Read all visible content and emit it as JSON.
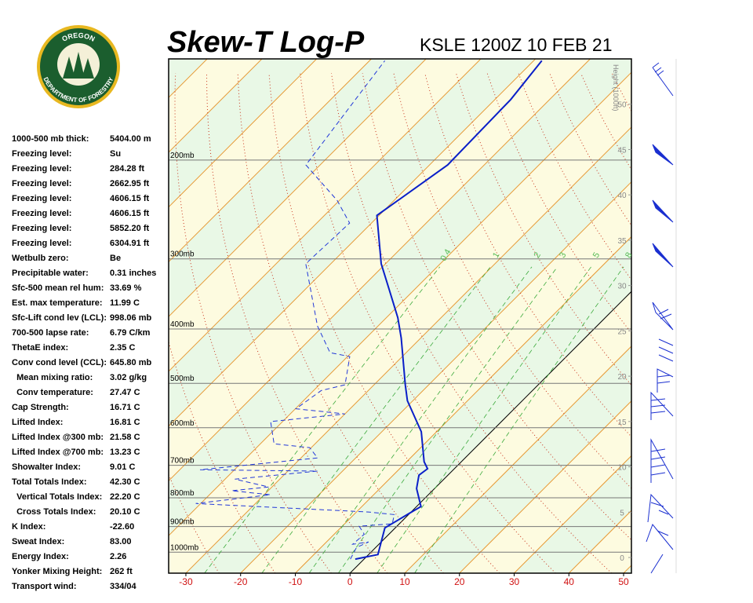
{
  "logo": {
    "top": "OREGON",
    "bottom": "DEPARTMENT OF FORESTRY"
  },
  "title": "Skew-T Log-P",
  "station": "KSLE 1200Z 10 FEB 21",
  "stats": [
    {
      "label": "1000-500 mb thick:",
      "value": "5404.00 m"
    },
    {
      "label": "Freezing level:",
      "value": "Su"
    },
    {
      "label": "Freezing level:",
      "value": "284.28 ft"
    },
    {
      "label": "Freezing level:",
      "value": "2662.95 ft"
    },
    {
      "label": "Freezing level:",
      "value": "4606.15 ft"
    },
    {
      "label": "Freezing level:",
      "value": "4606.15 ft"
    },
    {
      "label": "Freezing level:",
      "value": "5852.20 ft"
    },
    {
      "label": "Freezing level:",
      "value": "6304.91 ft"
    },
    {
      "label": "Wetbulb zero:",
      "value": "Be"
    },
    {
      "label": "Precipitable water:",
      "value": "0.31 inches"
    },
    {
      "label": "Sfc-500 mean rel hum:",
      "value": "33.69 %"
    },
    {
      "label": "Est. max temperature:",
      "value": "11.99 C"
    },
    {
      "label": "Sfc-Lift cond lev (LCL):",
      "value": "998.06 mb"
    },
    {
      "label": "700-500 lapse rate:",
      "value": "6.79 C/km"
    },
    {
      "label": "ThetaE index:",
      "value": "2.35 C"
    },
    {
      "label": "Conv cond level (CCL):",
      "value": "645.80 mb"
    },
    {
      "label": "  Mean mixing ratio:",
      "value": "3.02 g/kg"
    },
    {
      "label": "  Conv temperature:",
      "value": "27.47 C"
    },
    {
      "label": "Cap Strength:",
      "value": "16.71 C"
    },
    {
      "label": "Lifted Index:",
      "value": "16.81 C"
    },
    {
      "label": "Lifted Index @300 mb:",
      "value": "21.58 C"
    },
    {
      "label": "Lifted Index @700 mb:",
      "value": "13.23 C"
    },
    {
      "label": "Showalter Index:",
      "value": "9.01 C"
    },
    {
      "label": "Total Totals Index:",
      "value": "42.30 C"
    },
    {
      "label": "  Vertical Totals Index:",
      "value": "22.20 C"
    },
    {
      "label": "  Cross Totals Index:",
      "value": "20.10 C"
    },
    {
      "label": "K Index:",
      "value": "-22.60"
    },
    {
      "label": "Sweat Index:",
      "value": "83.00"
    },
    {
      "label": "Energy Index:",
      "value": "2.26"
    },
    {
      "label": "Yonker Mixing Height:",
      "value": "262 ft"
    },
    {
      "label": "Transport wind:",
      "value": "334/04"
    }
  ],
  "chart_data": {
    "type": "skewt",
    "xlim": [
      -33.15,
      51.43
    ],
    "xticks": [
      -30,
      -20,
      -10,
      0,
      10,
      20,
      30,
      40,
      50
    ],
    "ylim": [
      1090,
      132
    ],
    "log_y": true,
    "yticks": [
      {
        "value": 200,
        "label": "200mb"
      },
      {
        "value": 300,
        "label": "300mb"
      },
      {
        "value": 400,
        "label": "400mb"
      },
      {
        "value": 500,
        "label": "500mb"
      },
      {
        "value": 600,
        "label": "600mb"
      },
      {
        "value": 700,
        "label": "700mb"
      },
      {
        "value": 800,
        "label": "800mb"
      },
      {
        "value": 900,
        "label": "900mb"
      },
      {
        "value": 1000,
        "label": "1000mb"
      }
    ],
    "height_axis": {
      "label": "Height (1000ft)",
      "lim": [
        -1.73,
        55
      ],
      "ticks": [
        0,
        5,
        10,
        15,
        20,
        25,
        30,
        35,
        40,
        45,
        50
      ]
    },
    "mixing_ratios": [
      {
        "value": 0.4,
        "label": "0.4"
      },
      1,
      2,
      3,
      5,
      8
    ],
    "temperature": {
      "color": "#0a1fc8",
      "pressure": [
        1029,
        1010,
        905,
        876,
        856,
        829,
        770,
        729,
        710,
        690,
        610,
        537,
        503,
        415,
        382,
        341,
        306,
        251,
        204,
        156,
        133
      ],
      "values": [
        -1.6,
        1.7,
        -1.9,
        -0.9,
        -0.2,
        0.8,
        -3.3,
        -5.3,
        -4.9,
        -6.8,
        -12.8,
        -21.0,
        -24.3,
        -33.6,
        -37.9,
        -44.5,
        -50.8,
        -60.4,
        -56.7,
        -57.1,
        -58.5
      ]
    },
    "dewpoint": {
      "color": "#2238d8",
      "pressure": [
        1029,
        981,
        959,
        968,
        929,
        899,
        890,
        857,
        848,
        819,
        790,
        777,
        765,
        741,
        717,
        713,
        679,
        651,
        641,
        585,
        567,
        555,
        515,
        503,
        448,
        441,
        395,
        306,
        259,
        236,
        204,
        133
      ],
      "values": [
        -2.5,
        -3.5,
        -2.3,
        -4.8,
        -4.5,
        -6.9,
        -1.3,
        -2.6,
        -7.8,
        -40.9,
        -28.9,
        -36.7,
        -30.6,
        -38.2,
        -24.6,
        -46.3,
        -27.0,
        -30.3,
        -37.5,
        -42.2,
        -30.0,
        -39.9,
        -38.6,
        -35.3,
        -39.6,
        -43.9,
        -51.1,
        -64.6,
        -64.0,
        -70.4,
        -82.6,
        -87.2
      ]
    }
  }
}
